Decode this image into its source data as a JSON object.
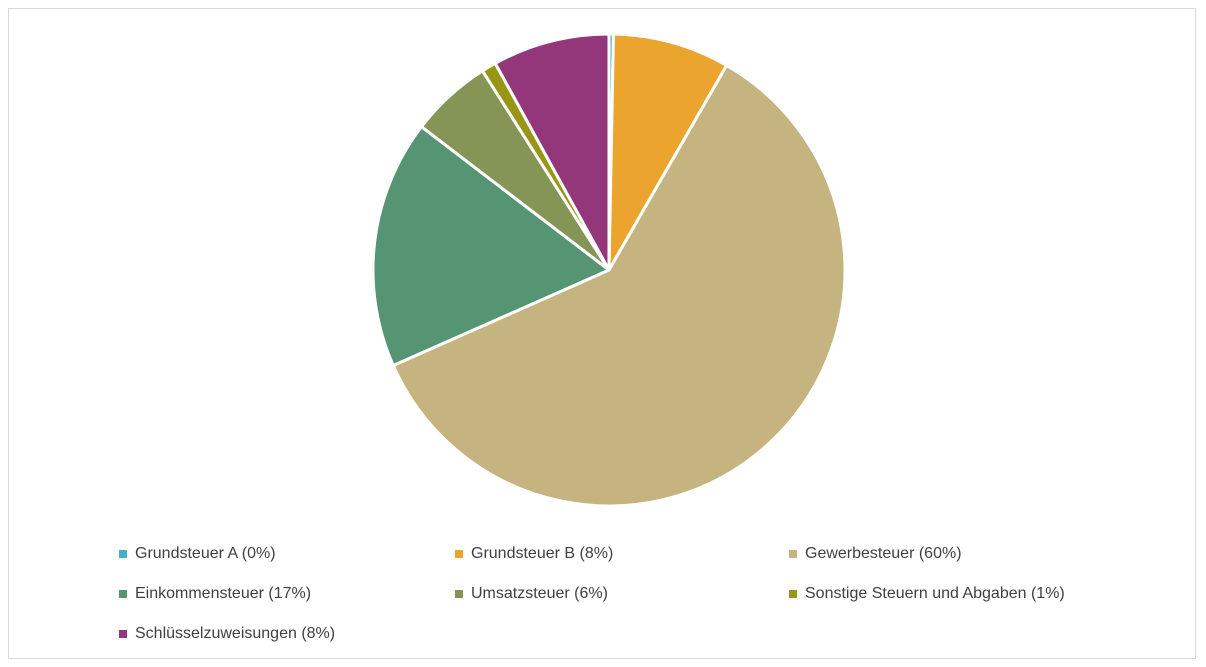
{
  "chart_data": {
    "type": "pie",
    "title": "",
    "legend_position": "bottom",
    "slices": [
      {
        "label": "Grundsteuer A  (0%)",
        "name": "Grundsteuer A",
        "value": 0.3,
        "color": "#4bacc6"
      },
      {
        "label": "Grundsteuer B (8%)",
        "name": "Grundsteuer B",
        "value": 8,
        "color": "#eba42d"
      },
      {
        "label": "Gewerbesteuer (60%)",
        "name": "Gewerbesteuer",
        "value": 60,
        "color": "#c5b380"
      },
      {
        "label": "Einkommensteuer (17%)",
        "name": "Einkommensteuer",
        "value": 17,
        "color": "#559573"
      },
      {
        "label": "Umsatzsteuer (6%)",
        "name": "Umsatzsteuer",
        "value": 5.6,
        "color": "#849556"
      },
      {
        "label": "Sonstige Steuern und Abgaben (1%)",
        "name": "Sonstige Steuern und Abgaben",
        "value": 1,
        "color": "#9a9615"
      },
      {
        "label": "Schlüsselzuweisungen (8%)",
        "name": "Schlüsselzuweisungen",
        "value": 8,
        "color": "#94367a"
      }
    ]
  }
}
